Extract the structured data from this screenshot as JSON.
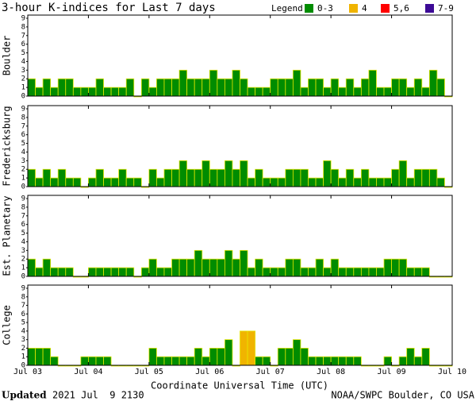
{
  "chart_data": {
    "type": "bar",
    "title": "3-hour K-indices for Last 7 days",
    "legend_title": "Legend:",
    "legend": [
      {
        "label": "0-3",
        "color": "#008c00"
      },
      {
        "label": "4",
        "color": "#f0b400"
      },
      {
        "label": "5,6",
        "color": "#ff0000"
      },
      {
        "label": "7-9",
        "color": "#3c0a96"
      }
    ],
    "xlabel": "Coordinate Universal Time (UTC)",
    "xlim": [
      0,
      56
    ],
    "xticks": [
      {
        "value": 0,
        "label": "Jul 03"
      },
      {
        "value": 8,
        "label": "Jul 04"
      },
      {
        "value": 16,
        "label": "Jul 05"
      },
      {
        "value": 24,
        "label": "Jul 06"
      },
      {
        "value": 32,
        "label": "Jul 07"
      },
      {
        "value": 40,
        "label": "Jul 08"
      },
      {
        "value": 48,
        "label": "Jul 09"
      },
      {
        "value": 56,
        "label": "Jul 10"
      }
    ],
    "ylim": [
      0,
      9
    ],
    "yticks": [
      0,
      1,
      2,
      3,
      4,
      5,
      6,
      7,
      8,
      9
    ],
    "series": [
      {
        "name": "Boulder",
        "values": [
          2,
          1,
          2,
          1,
          2,
          2,
          1,
          1,
          1,
          2,
          1,
          1,
          1,
          2,
          0,
          2,
          1,
          2,
          2,
          2,
          3,
          2,
          2,
          2,
          3,
          2,
          2,
          3,
          2,
          1,
          1,
          1,
          2,
          2,
          2,
          3,
          1,
          2,
          2,
          1,
          2,
          1,
          2,
          1,
          2,
          3,
          1,
          1,
          2,
          2,
          1,
          2,
          1,
          3,
          2,
          0
        ]
      },
      {
        "name": "Fredericksburg",
        "values": [
          2,
          1,
          2,
          1,
          2,
          1,
          1,
          0,
          1,
          2,
          1,
          1,
          2,
          1,
          1,
          0,
          2,
          1,
          2,
          2,
          3,
          2,
          2,
          3,
          2,
          2,
          3,
          2,
          3,
          1,
          2,
          1,
          1,
          1,
          2,
          2,
          2,
          1,
          1,
          3,
          2,
          1,
          2,
          1,
          2,
          1,
          1,
          1,
          2,
          3,
          1,
          2,
          2,
          2,
          1,
          0
        ]
      },
      {
        "name": "Est. Planetary",
        "values": [
          2,
          1,
          2,
          1,
          1,
          1,
          0,
          0,
          1,
          1,
          1,
          1,
          1,
          1,
          0,
          1,
          2,
          1,
          1,
          2,
          2,
          2,
          3,
          2,
          2,
          2,
          3,
          2,
          3,
          1,
          2,
          1,
          1,
          1,
          2,
          2,
          1,
          1,
          2,
          1,
          2,
          1,
          1,
          1,
          1,
          1,
          1,
          2,
          2,
          2,
          1,
          1,
          1,
          0,
          0,
          0
        ]
      },
      {
        "name": "College",
        "values": [
          2,
          2,
          2,
          1,
          0,
          0,
          0,
          1,
          1,
          1,
          1,
          0,
          0,
          0,
          0,
          0,
          2,
          1,
          1,
          1,
          1,
          1,
          2,
          1,
          2,
          2,
          3,
          0,
          4,
          4,
          1,
          1,
          0,
          2,
          2,
          3,
          2,
          1,
          1,
          1,
          1,
          1,
          1,
          1,
          0,
          0,
          0,
          1,
          0,
          1,
          2,
          1,
          2,
          0,
          0,
          0
        ]
      }
    ],
    "footer": {
      "updated_label": "Updated",
      "updated": "2021 Jul  9 2130",
      "source": "NOAA/SWPC Boulder, CO USA"
    }
  }
}
